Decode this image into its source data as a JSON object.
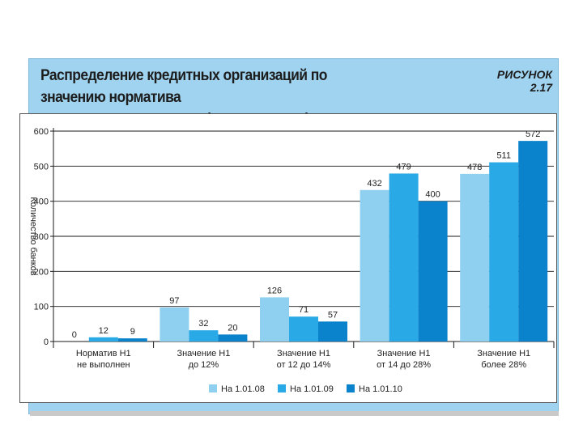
{
  "header": {
    "title_line1": "Распределение кредитных организаций по значению норматива",
    "title_line2": "достаточности капитала (по количеству)",
    "figure_label": "РИСУНОК 2.17"
  },
  "colors": {
    "frame": "#9fd3ef",
    "series": [
      "#8fd0f0",
      "#29a9e6",
      "#0a83cc"
    ]
  },
  "chart_data": {
    "type": "bar",
    "ylabel": "Количество банков",
    "ylim": [
      0,
      600
    ],
    "yticks": [
      "0",
      "100",
      "200",
      "300",
      "400",
      "500",
      "600"
    ],
    "categories": [
      [
        "Норматив Н1",
        "не выполнен"
      ],
      [
        "Значение Н1",
        "до 12%"
      ],
      [
        "Значение Н1",
        "от 12 до 14%"
      ],
      [
        "Значение Н1",
        "от 14 до 28%"
      ],
      [
        "Значение Н1",
        "более 28%"
      ]
    ],
    "series": [
      {
        "name": "На 1.01.08",
        "values": [
          0,
          97,
          126,
          432,
          478
        ]
      },
      {
        "name": "На 1.01.09",
        "values": [
          12,
          32,
          71,
          479,
          511
        ]
      },
      {
        "name": "На 1.01.10",
        "values": [
          9,
          20,
          57,
          400,
          572
        ]
      }
    ],
    "grid": true,
    "legend": "bottom"
  }
}
